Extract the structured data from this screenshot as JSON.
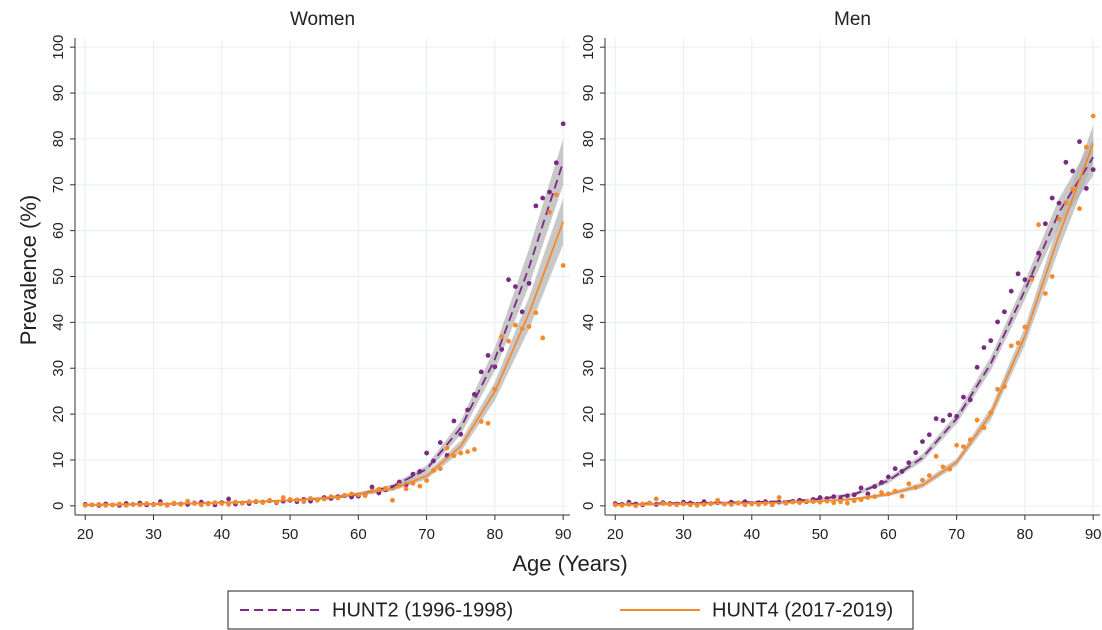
{
  "y_label": "Prevalence (%)",
  "x_label": "Age (Years)",
  "legend": [
    {
      "name": "HUNT2 (1996-1998)",
      "color": "#7b2a84",
      "line_style": "dashed"
    },
    {
      "name": "HUNT4 (2017-2019)",
      "color": "#f58a2c",
      "line_style": "solid"
    }
  ],
  "band_color": "#b5b5b5",
  "chart_data": [
    {
      "type": "line",
      "title": "Women",
      "xlim": [
        18.5,
        91
      ],
      "ylim": [
        -2,
        102
      ],
      "xticks": [
        20,
        30,
        40,
        50,
        60,
        70,
        80,
        90
      ],
      "yticks": [
        0,
        10,
        20,
        30,
        40,
        50,
        60,
        70,
        80,
        90,
        100
      ],
      "grid": true,
      "x": [
        20,
        21,
        22,
        23,
        24,
        25,
        26,
        27,
        28,
        29,
        30,
        31,
        32,
        33,
        34,
        35,
        36,
        37,
        38,
        39,
        40,
        41,
        42,
        43,
        44,
        45,
        46,
        47,
        48,
        49,
        50,
        51,
        52,
        53,
        54,
        55,
        56,
        57,
        58,
        59,
        60,
        61,
        62,
        63,
        64,
        65,
        66,
        67,
        68,
        69,
        70,
        71,
        72,
        73,
        74,
        75,
        76,
        77,
        78,
        79,
        80,
        81,
        82,
        83,
        84,
        85,
        86,
        87,
        88,
        89,
        90
      ],
      "fit_x": [
        20,
        25,
        30,
        35,
        40,
        45,
        50,
        55,
        60,
        65,
        70,
        75,
        80,
        85,
        90
      ],
      "series": [
        {
          "points": [
            0.3,
            0.2,
            0.1,
            0.4,
            0.2,
            0.1,
            0.5,
            0.3,
            0.6,
            0.2,
            0.3,
            0.9,
            0.2,
            0.5,
            0.4,
            0.3,
            0.6,
            0.8,
            0.5,
            0.2,
            0.7,
            1.5,
            0.4,
            0.6,
            0.5,
            0.9,
            0.8,
            1.1,
            0.7,
            1.0,
            1.2,
            0.9,
            1.4,
            1.0,
            1.3,
            1.8,
            1.6,
            2.0,
            2.2,
            1.9,
            2.1,
            2.5,
            4.1,
            2.8,
            3.5,
            4.0,
            5.2,
            4.6,
            6.9,
            7.5,
            11.5,
            9.8,
            13.8,
            11.0,
            18.5,
            15.6,
            20.9,
            24.3,
            29.2,
            32.8,
            30.3,
            34.1,
            49.3,
            47.8,
            42.3,
            48.5,
            65.4,
            67.1,
            68.4,
            74.8,
            83.3
          ],
          "fit": [
            0.2,
            0.3,
            0.4,
            0.5,
            0.7,
            0.9,
            1.2,
            1.6,
            2.5,
            4.2,
            8,
            17,
            32,
            52,
            75
          ],
          "lower": [
            0,
            0.1,
            0.2,
            0.3,
            0.5,
            0.7,
            1.0,
            1.3,
            2.1,
            3.7,
            7.2,
            15.5,
            29.5,
            48,
            70
          ],
          "upper": [
            0.4,
            0.5,
            0.6,
            0.7,
            0.9,
            1.1,
            1.4,
            1.9,
            2.9,
            4.7,
            8.8,
            18.5,
            34.5,
            56,
            80
          ]
        },
        {
          "points": [
            0.1,
            0.2,
            0.3,
            0.1,
            0.2,
            0.4,
            0.1,
            0.3,
            0.2,
            0.5,
            0.2,
            0.4,
            0.1,
            0.6,
            0.3,
            1.0,
            0.5,
            0.2,
            0.4,
            0.7,
            0.5,
            0.3,
            0.8,
            0.6,
            0.9,
            1.0,
            0.7,
            1.2,
            0.8,
            1.8,
            1.4,
            1.3,
            0.9,
            1.6,
            1.2,
            1.5,
            2.0,
            1.7,
            2.3,
            2.6,
            2.4,
            2.2,
            3.2,
            3.6,
            3.8,
            1.2,
            4.5,
            3.7,
            4.9,
            4.3,
            5.5,
            7.7,
            8.1,
            12.6,
            10.9,
            11.5,
            11.8,
            12.3,
            18.4,
            18.0,
            25.4,
            36.9,
            35.9,
            39.4,
            38.6,
            39.1,
            42.1,
            36.6,
            64.0,
            67.8,
            52.4
          ],
          "fit": [
            0.2,
            0.3,
            0.4,
            0.5,
            0.7,
            0.9,
            1.2,
            1.7,
            2.6,
            3.7,
            6.5,
            13,
            25,
            42,
            62
          ],
          "lower": [
            0,
            0.1,
            0.2,
            0.3,
            0.5,
            0.7,
            1.0,
            1.4,
            2.2,
            3.2,
            5.8,
            11.8,
            23,
            38.5,
            57
          ],
          "upper": [
            0.4,
            0.5,
            0.6,
            0.7,
            0.9,
            1.1,
            1.4,
            2.0,
            3.0,
            4.2,
            7.2,
            14.2,
            27,
            45.5,
            67
          ]
        }
      ]
    },
    {
      "type": "line",
      "title": "Men",
      "xlim": [
        18.5,
        91
      ],
      "ylim": [
        -2,
        102
      ],
      "xticks": [
        20,
        30,
        40,
        50,
        60,
        70,
        80,
        90
      ],
      "yticks": [
        0,
        10,
        20,
        30,
        40,
        50,
        60,
        70,
        80,
        90,
        100
      ],
      "grid": true,
      "x": [
        20,
        21,
        22,
        23,
        24,
        25,
        26,
        27,
        28,
        29,
        30,
        31,
        32,
        33,
        34,
        35,
        36,
        37,
        38,
        39,
        40,
        41,
        42,
        43,
        44,
        45,
        46,
        47,
        48,
        49,
        50,
        51,
        52,
        53,
        54,
        55,
        56,
        57,
        58,
        59,
        60,
        61,
        62,
        63,
        64,
        65,
        66,
        67,
        68,
        69,
        70,
        71,
        72,
        73,
        74,
        75,
        76,
        77,
        78,
        79,
        80,
        81,
        82,
        83,
        84,
        85,
        86,
        87,
        88,
        89,
        90
      ],
      "fit_x": [
        20,
        25,
        30,
        35,
        40,
        45,
        50,
        55,
        60,
        65,
        70,
        75,
        80,
        85,
        90
      ],
      "series": [
        {
          "points": [
            0.5,
            0.3,
            0.8,
            0.4,
            0.2,
            0.6,
            0.3,
            0.7,
            0.5,
            0.4,
            0.8,
            0.6,
            0.3,
            0.9,
            0.5,
            0.7,
            0.4,
            0.8,
            0.6,
            0.9,
            0.5,
            0.7,
            0.9,
            0.4,
            0.8,
            0.6,
            1.0,
            1.2,
            0.9,
            1.4,
            1.8,
            1.6,
            2.0,
            1.5,
            2.2,
            2.4,
            3.9,
            2.6,
            4.2,
            5.1,
            6.3,
            8.1,
            7.5,
            9.4,
            11.6,
            14.0,
            15.5,
            19.0,
            18.6,
            19.8,
            19.5,
            23.7,
            23.1,
            30.2,
            34.5,
            36.0,
            40.1,
            42.3,
            46.8,
            50.6,
            49.3,
            49.8,
            55.1,
            61.5,
            67.1,
            66.0,
            74.9,
            73.0,
            79.4,
            69.2,
            73.3
          ],
          "fit": [
            0.4,
            0.5,
            0.6,
            0.7,
            0.8,
            1.0,
            1.5,
            2.5,
            5.5,
            10.5,
            19,
            31,
            47,
            64,
            76
          ],
          "lower": [
            0.2,
            0.3,
            0.4,
            0.5,
            0.6,
            0.8,
            1.2,
            2.1,
            4.9,
            9.7,
            17.9,
            29.5,
            45,
            61,
            72
          ],
          "upper": [
            0.6,
            0.7,
            0.8,
            0.9,
            1.0,
            1.2,
            1.8,
            2.9,
            6.1,
            11.3,
            20.1,
            32.5,
            49,
            67,
            80
          ]
        },
        {
          "points": [
            0.2,
            0.1,
            0.3,
            0.0,
            0.4,
            0.6,
            1.5,
            0.5,
            0.3,
            0.2,
            0.4,
            0.2,
            0.1,
            0.3,
            0.5,
            1.2,
            0.4,
            0.3,
            0.6,
            0.2,
            0.4,
            0.3,
            0.5,
            0.2,
            1.8,
            0.6,
            0.8,
            0.7,
            1.0,
            0.9,
            0.8,
            1.0,
            0.7,
            0.9,
            0.6,
            1.1,
            1.3,
            1.8,
            2.0,
            2.9,
            2.6,
            3.2,
            2.1,
            4.8,
            4.0,
            5.6,
            6.6,
            10.8,
            8.5,
            8.0,
            13.2,
            12.9,
            14.4,
            18.7,
            17.0,
            20.3,
            25.4,
            26.0,
            34.9,
            35.5,
            39.0,
            49.4,
            61.3,
            46.3,
            50.0,
            62.5,
            66.1,
            69.0,
            64.8,
            78.2,
            85.0
          ],
          "fit": [
            0.2,
            0.3,
            0.4,
            0.5,
            0.6,
            0.7,
            1.0,
            1.5,
            2.5,
            4.5,
            9.5,
            20,
            37,
            59,
            79
          ],
          "lower": [
            0,
            0.1,
            0.2,
            0.3,
            0.4,
            0.5,
            0.8,
            1.2,
            2.1,
            3.9,
            8.7,
            18.7,
            35,
            56,
            75
          ],
          "upper": [
            0.4,
            0.5,
            0.6,
            0.7,
            0.8,
            0.9,
            1.2,
            1.8,
            2.9,
            5.1,
            10.3,
            21.3,
            39,
            62,
            83
          ]
        }
      ]
    }
  ]
}
